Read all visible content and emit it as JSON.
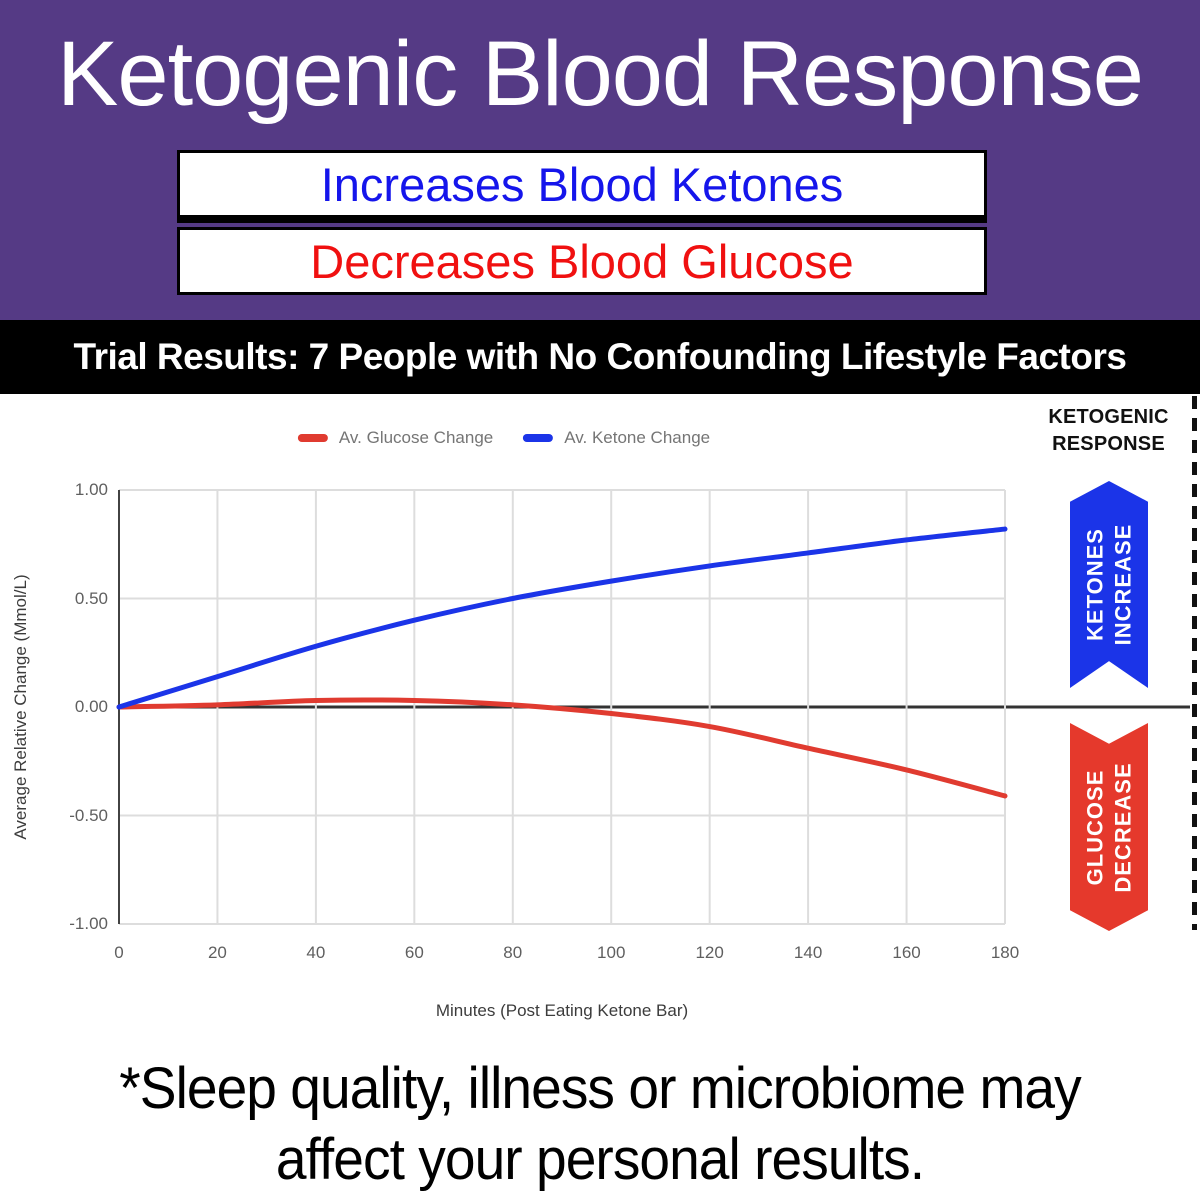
{
  "header": {
    "title": "Ketogenic Blood Response",
    "banner_ketones": "Increases Blood Ketones",
    "banner_glucose": "Decreases Blood Glucose",
    "bg_color": "#553A85",
    "ketones_text_color": "#1515EB",
    "glucose_text_color": "#F01010"
  },
  "trial_bar": {
    "text": "Trial Results: 7 People with No Confounding Lifestyle Factors"
  },
  "chart_data": {
    "type": "line",
    "title": "",
    "xlabel": "Minutes (Post Eating Ketone Bar)",
    "ylabel": "Average Relative Change (Mmol/L)",
    "x": [
      0,
      20,
      40,
      60,
      80,
      100,
      120,
      140,
      160,
      180
    ],
    "xticks": [
      "0",
      "20",
      "40",
      "60",
      "80",
      "100",
      "120",
      "140",
      "160",
      "180"
    ],
    "yticks": [
      {
        "value": 1.0,
        "label": "1.00"
      },
      {
        "value": 0.5,
        "label": "0.50"
      },
      {
        "value": 0.0,
        "label": "0.00"
      },
      {
        "value": -0.5,
        "label": "-0.50"
      },
      {
        "value": -1.0,
        "label": "-1.00"
      }
    ],
    "ylim": [
      -1.0,
      1.0
    ],
    "xlim": [
      0,
      180
    ],
    "grid": true,
    "legend_position": "top",
    "series": [
      {
        "name": "Av. Glucose Change",
        "color": "#E03B30",
        "values": [
          0.0,
          0.01,
          0.03,
          0.03,
          0.01,
          -0.03,
          -0.09,
          -0.19,
          -0.29,
          -0.41
        ]
      },
      {
        "name": "Av. Ketone Change",
        "color": "#1B34E8",
        "values": [
          0.0,
          0.14,
          0.28,
          0.4,
          0.5,
          0.58,
          0.65,
          0.71,
          0.77,
          0.82
        ]
      }
    ]
  },
  "sidebar": {
    "title_line1": "KETOGENIC",
    "title_line2": "RESPONSE",
    "arrow_up": {
      "line1": "KETONES",
      "line2": "INCREASE",
      "color": "#1B34E8"
    },
    "arrow_down": {
      "line1": "GLUCOSE",
      "line2": "DECREASE",
      "color": "#E5392C"
    }
  },
  "footnote": {
    "line1": "*Sleep quality, illness or microbiome may",
    "line2": "affect your personal results."
  }
}
